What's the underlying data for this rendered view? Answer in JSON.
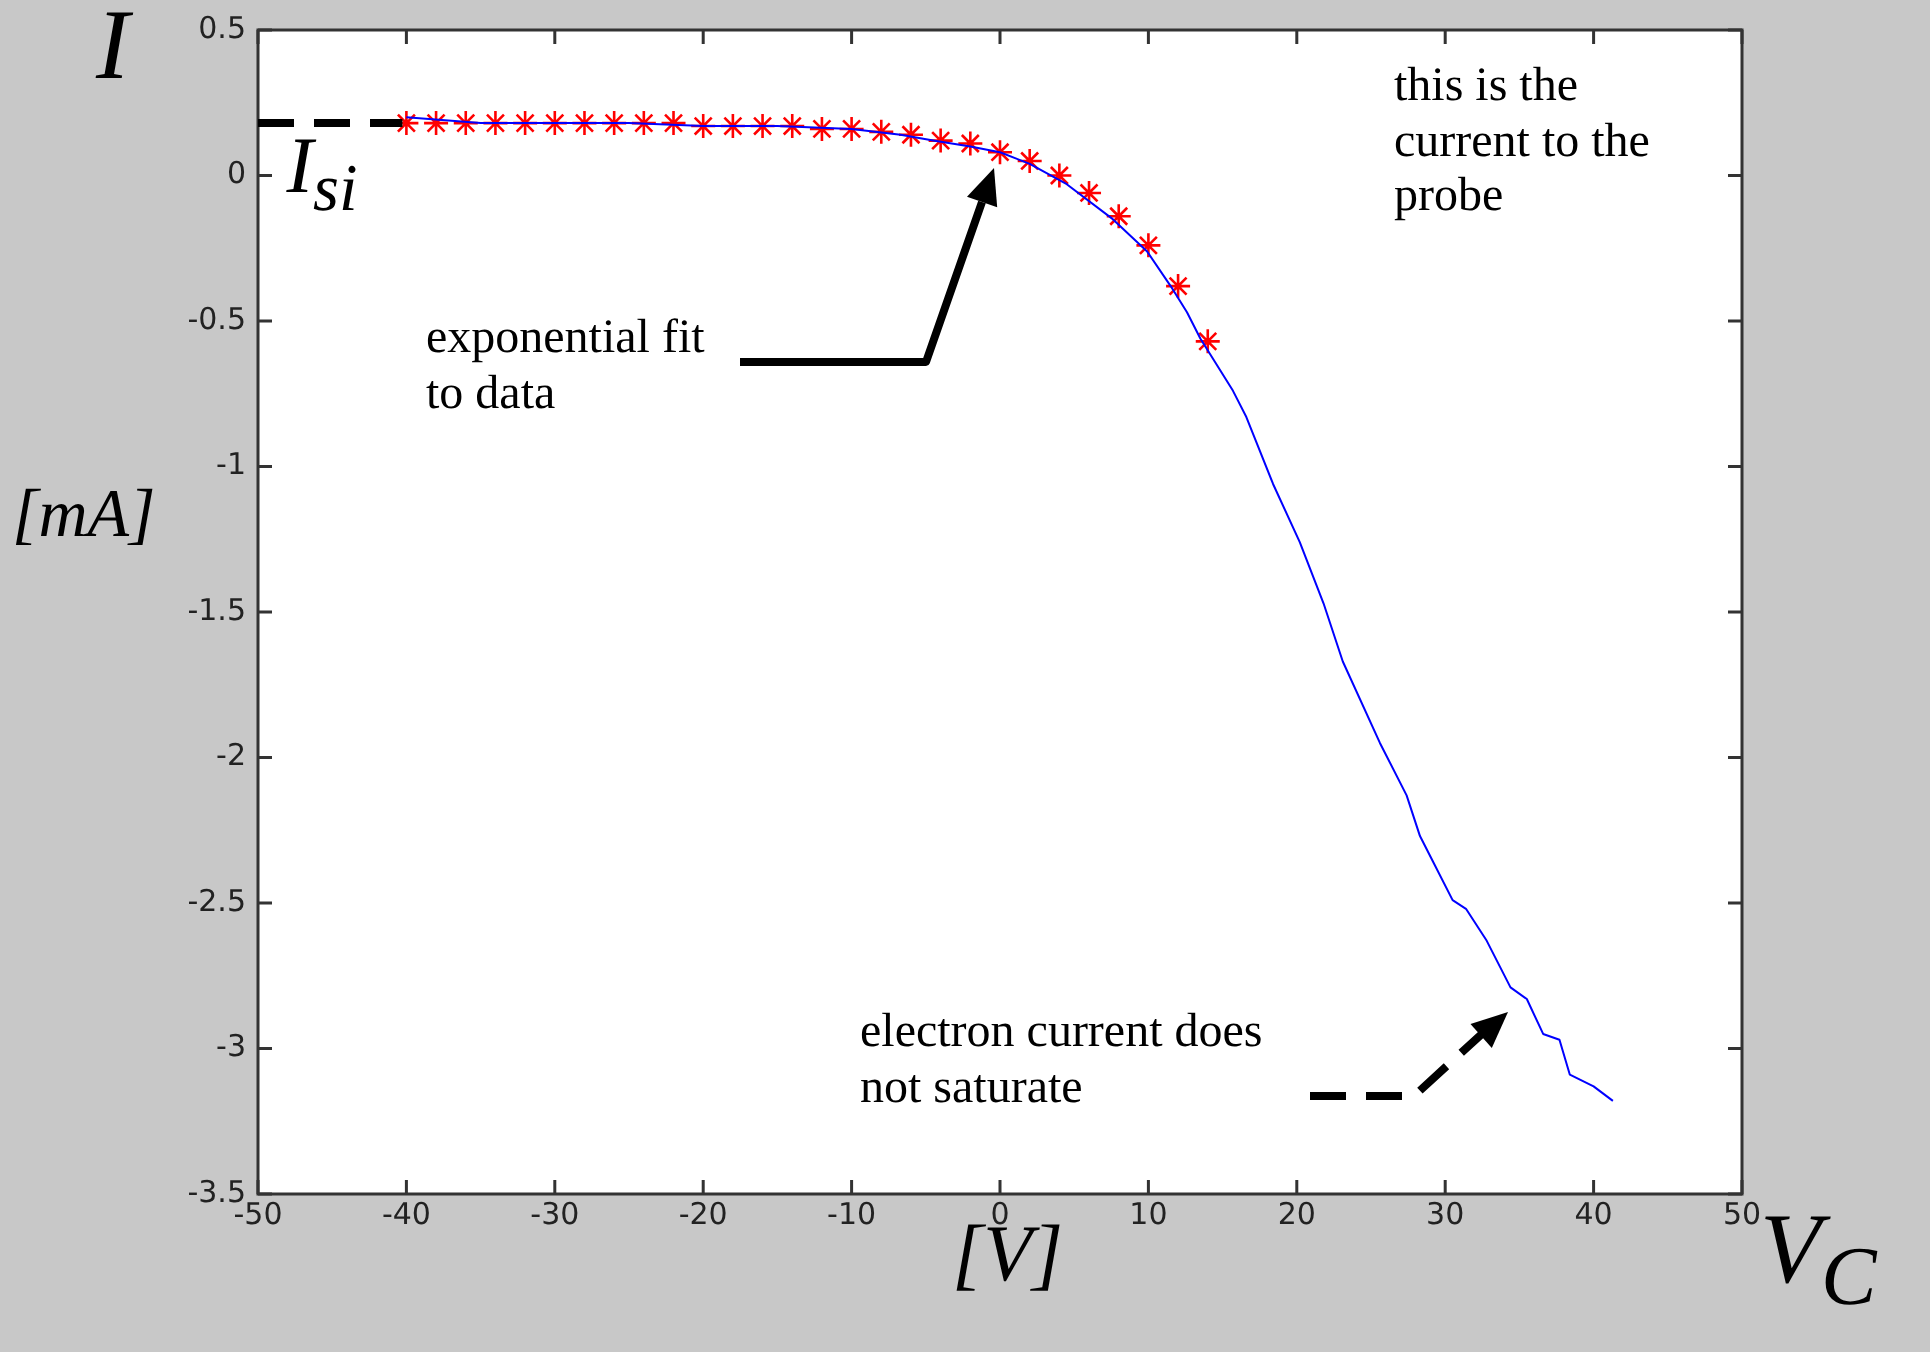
{
  "chart_data": {
    "type": "line",
    "xlabel": "[V]",
    "ylabel": "[mA]",
    "xlim": [
      -50,
      50
    ],
    "xticks": [
      -50,
      -40,
      -30,
      -20,
      -10,
      0,
      10,
      20,
      30,
      40,
      50
    ],
    "ylim": [
      -3.5,
      0.5
    ],
    "yticks": [
      -3.5,
      -3,
      -2.5,
      -2,
      -1.5,
      -1,
      -0.5,
      0,
      0.5
    ],
    "grid": false,
    "legend": false,
    "series": [
      {
        "type": "line",
        "color": "#0000ff",
        "marker": "none",
        "x": [
          -40,
          -35,
          -30,
          -25,
          -20,
          -15,
          -10,
          -6.7,
          -4.5,
          -2,
          0,
          2,
          4.5,
          7.6,
          9.9,
          11.5,
          12.6,
          13.5,
          15.7,
          16.6,
          18.4,
          20.2,
          21.8,
          23.1,
          25.6,
          27.4,
          28.3,
          29.2,
          30.5,
          31.4,
          32.8,
          34.4,
          35.5,
          36.6,
          37.7,
          38.4,
          40.0,
          41.3
        ],
        "values": [
          0.2,
          0.18,
          0.18,
          0.18,
          0.17,
          0.17,
          0.16,
          0.14,
          0.12,
          0.1,
          0.08,
          0.04,
          -0.03,
          -0.15,
          -0.26,
          -0.38,
          -0.47,
          -0.56,
          -0.74,
          -0.83,
          -1.06,
          -1.26,
          -1.47,
          -1.67,
          -1.95,
          -2.13,
          -2.27,
          -2.36,
          -2.49,
          -2.52,
          -2.63,
          -2.79,
          -2.83,
          -2.95,
          -2.97,
          -3.09,
          -3.13,
          -3.18
        ]
      },
      {
        "type": "scatter",
        "color": "#ff0000",
        "marker": "cross",
        "x": [
          -40,
          -38,
          -36,
          -34,
          -32,
          -30,
          -28,
          -26,
          -24,
          -22,
          -20,
          -18,
          -16,
          -14,
          -12,
          -10,
          -8,
          -6,
          -4,
          -2,
          0,
          2,
          4,
          6,
          8,
          10,
          12,
          14
        ],
        "values": [
          0.18,
          0.18,
          0.18,
          0.18,
          0.18,
          0.18,
          0.18,
          0.18,
          0.18,
          0.18,
          0.17,
          0.17,
          0.17,
          0.17,
          0.16,
          0.16,
          0.15,
          0.14,
          0.12,
          0.11,
          0.08,
          0.05,
          0.0,
          -0.06,
          -0.14,
          -0.24,
          -0.38,
          -0.57
        ]
      }
    ],
    "annotations": [
      "I",
      {
        "text": "I$_{si}$",
        "x": -40,
        "y": 0.18
      },
      "exponential fit to data",
      "this is the current to the probe",
      "electron current does not saturate",
      "V$_{C}$"
    ]
  }
}
